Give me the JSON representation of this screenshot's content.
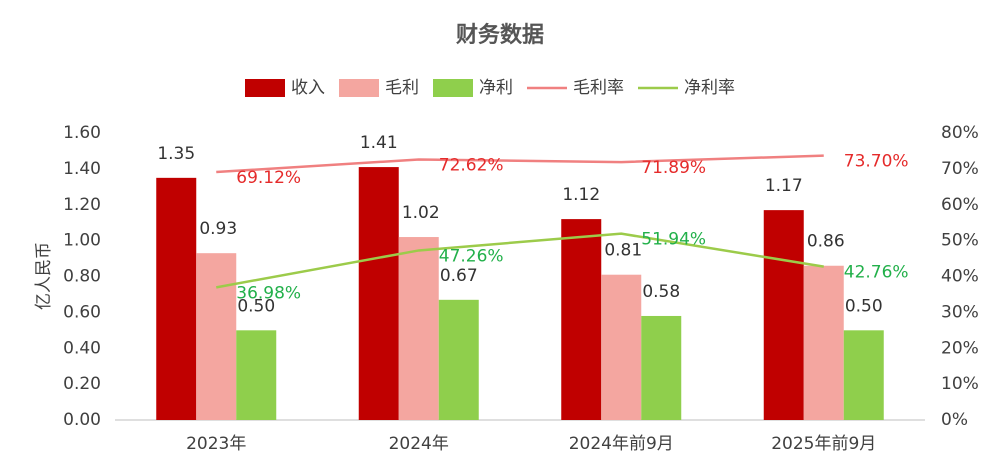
{
  "chart_data": {
    "type": "bar-line",
    "title": "财务数据",
    "y_label": "亿人民币",
    "categories": [
      "2023年",
      "2024年",
      "2024年前9月",
      "2025年前9月"
    ],
    "series": [
      {
        "name": "收入",
        "type": "bar",
        "color": "#c00000",
        "values": [
          1.35,
          1.41,
          1.12,
          1.17
        ]
      },
      {
        "name": "毛利",
        "type": "bar",
        "color": "#f4a6a0",
        "values": [
          0.93,
          1.02,
          0.81,
          0.86
        ]
      },
      {
        "name": "净利",
        "type": "bar",
        "color": "#8fcf4c",
        "values": [
          0.5,
          0.67,
          0.58,
          0.5
        ],
        "value_labels": [
          "0.50",
          "0.67",
          "0.58",
          "0.50"
        ]
      },
      {
        "name": "毛利率",
        "type": "line",
        "axis": "y2",
        "color": "#f08080",
        "label_color": "#e52b2b",
        "values": [
          69.12,
          72.62,
          71.89,
          73.7
        ],
        "value_labels": [
          "69.12%",
          "72.62%",
          "71.89%",
          "73.70%"
        ]
      },
      {
        "name": "净利率",
        "type": "line",
        "axis": "y2",
        "color": "#9ccb4a",
        "label_color": "#22b04a",
        "values": [
          36.98,
          47.26,
          51.94,
          42.76
        ],
        "value_labels": [
          "36.98%",
          "47.26%",
          "51.94%",
          "42.76%"
        ]
      }
    ],
    "ylim": [
      0,
      1.6
    ],
    "yticks": [
      {
        "value": 0,
        "label": "0.00"
      },
      {
        "value": 0.2,
        "label": "0.20"
      },
      {
        "value": 0.4,
        "label": "0.40"
      },
      {
        "value": 0.6,
        "label": "0.60"
      },
      {
        "value": 0.8,
        "label": "0.80"
      },
      {
        "value": 1,
        "label": "1.00"
      },
      {
        "value": 1.2,
        "label": "1.20"
      },
      {
        "value": 1.4,
        "label": "1.40"
      },
      {
        "value": 1.6,
        "label": "1.60"
      }
    ],
    "y2lim": [
      0,
      80
    ],
    "y2ticks": [
      {
        "value": 0,
        "label": "0%"
      },
      {
        "value": 10,
        "label": "10%"
      },
      {
        "value": 20,
        "label": "20%"
      },
      {
        "value": 30,
        "label": "30%"
      },
      {
        "value": 40,
        "label": "40%"
      },
      {
        "value": 50,
        "label": "50%"
      },
      {
        "value": 60,
        "label": "60%"
      },
      {
        "value": 70,
        "label": "70%"
      },
      {
        "value": 80,
        "label": "80%"
      }
    ],
    "legend": "top"
  }
}
